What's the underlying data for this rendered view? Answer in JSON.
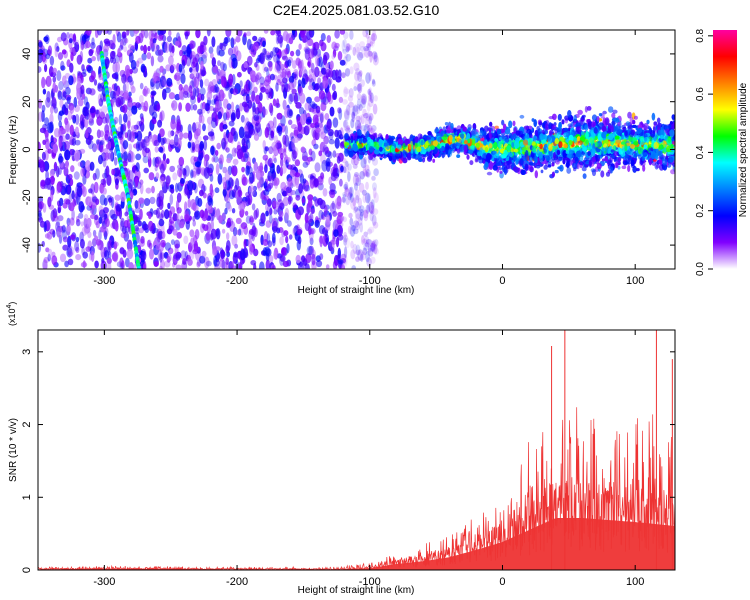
{
  "title": "C2E4.2025.081.03.52.G10",
  "colors": {
    "snr": "#ee3333",
    "colorbar_stops": [
      "#ff00a0",
      "#ff0000",
      "#ff8000",
      "#ffff00",
      "#00ff00",
      "#00ffff",
      "#0080ff",
      "#0000ff",
      "#8000ff",
      "#ffffff"
    ]
  },
  "chart_data": [
    {
      "type": "heatmap",
      "title": "C2E4.2025.081.03.52.G10",
      "xlabel": "Height of straight line (km)",
      "ylabel": "Frequency (Hz)",
      "xlim": [
        -350,
        130
      ],
      "ylim": [
        -50,
        50
      ],
      "xticks": [
        -300,
        -200,
        -100,
        0,
        100
      ],
      "xtick_labels": [
        "-300",
        "-200",
        "-100",
        "0",
        "100"
      ],
      "yticks": [
        -40,
        -20,
        0,
        20,
        40
      ],
      "ytick_labels": [
        "-40",
        "-20",
        "0",
        "20",
        "40"
      ],
      "colorbar": {
        "label": "Normalized spectral amplitude",
        "range": [
          0,
          0.82
        ],
        "ticks": [
          0.0,
          0.2,
          0.4,
          0.6,
          0.8
        ],
        "tick_labels": [
          "0.0",
          "0.2",
          "0.4",
          "0.6",
          "0.8"
        ]
      },
      "noise_region_x": [
        -350,
        -110
      ],
      "signal_band": {
        "x": [
          -120,
          -100,
          -80,
          -60,
          -40,
          -30,
          -20,
          0,
          20,
          40,
          60,
          80,
          100,
          130
        ],
        "center_hz": [
          2,
          2,
          0,
          1,
          4,
          4,
          2,
          0,
          1,
          2,
          3,
          3,
          2,
          2
        ],
        "halfwidth_hz": [
          6,
          6,
          6,
          7,
          8,
          8,
          10,
          14,
          14,
          15,
          16,
          16,
          14,
          14
        ]
      },
      "diagonal_trace": [
        {
          "x": -302,
          "y": 40
        },
        {
          "x": -297,
          "y": 20
        },
        {
          "x": -290,
          "y": 0
        },
        {
          "x": -282,
          "y": -20
        },
        {
          "x": -274,
          "y": -50
        }
      ]
    },
    {
      "type": "area",
      "xlabel": "Height of straight line (km)",
      "ylabel": "SNR (10 * v/v)",
      "yscale_label": "(x10",
      "yscale_exp": "4",
      "yscale_close": ")",
      "xlim": [
        -350,
        130
      ],
      "ylim": [
        0,
        3.3
      ],
      "xticks": [
        -300,
        -200,
        -100,
        0,
        100
      ],
      "xtick_labels": [
        "-300",
        "-200",
        "-100",
        "0",
        "100"
      ],
      "yticks": [
        0,
        1,
        2,
        3
      ],
      "ytick_labels": [
        "0",
        "1",
        "2",
        "3"
      ],
      "envelope": {
        "x": [
          -350,
          -300,
          -200,
          -120,
          -100,
          -80,
          -60,
          -40,
          -20,
          0,
          20,
          40,
          60,
          80,
          100,
          130
        ],
        "peak": [
          0.04,
          0.06,
          0.04,
          0.05,
          0.12,
          0.25,
          0.35,
          0.55,
          0.8,
          1.1,
          1.8,
          2.4,
          2.2,
          2.1,
          2.2,
          2.2
        ],
        "fill": [
          0.02,
          0.03,
          0.02,
          0.02,
          0.05,
          0.15,
          0.22,
          0.32,
          0.5,
          0.7,
          1.0,
          1.3,
          1.3,
          1.25,
          1.2,
          1.1
        ]
      },
      "spikes": [
        {
          "x": 37,
          "y": 3.08
        },
        {
          "x": 47,
          "y": 3.3
        },
        {
          "x": 116,
          "y": 3.3
        },
        {
          "x": 128,
          "y": 2.9
        }
      ]
    }
  ]
}
